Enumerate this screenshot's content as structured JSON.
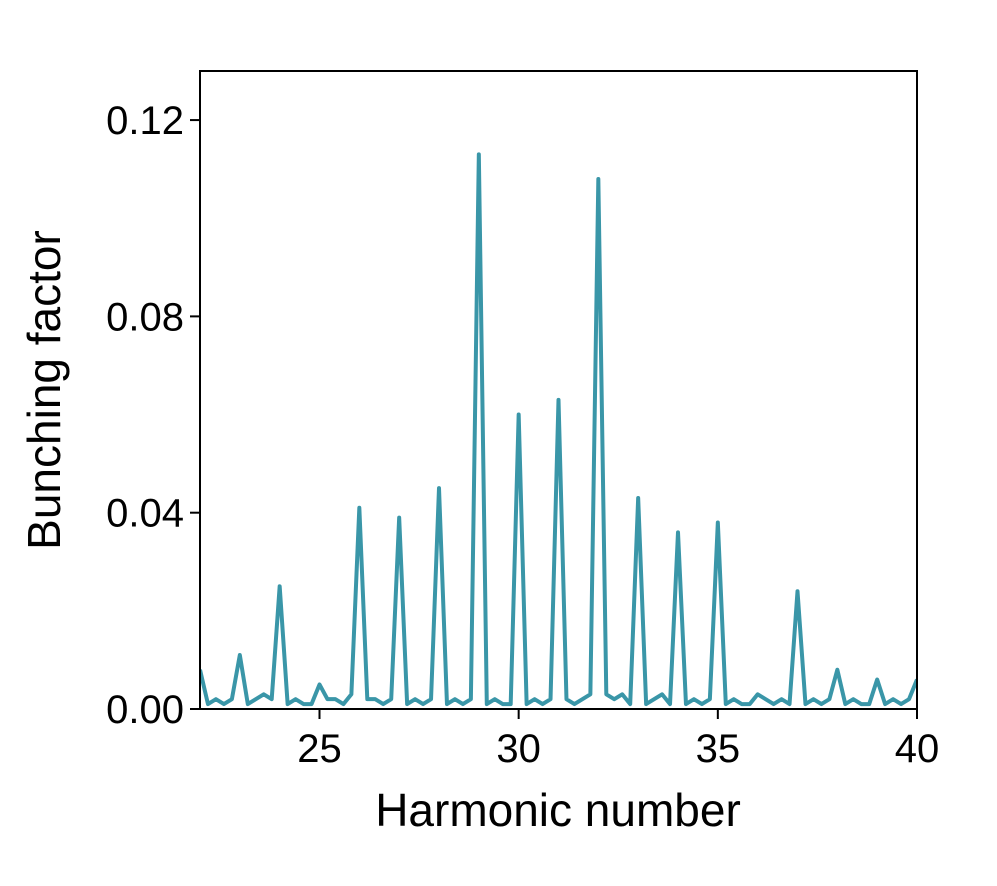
{
  "chart_data": {
    "type": "line",
    "title": "",
    "xlabel": "Harmonic number",
    "ylabel": "Bunching factor",
    "xlim": [
      22,
      40
    ],
    "ylim": [
      0,
      0.13
    ],
    "xticks": [
      25,
      30,
      35,
      40
    ],
    "yticks": [
      0.0,
      0.04,
      0.08,
      0.12
    ],
    "xtick_labels": [
      "25",
      "30",
      "35",
      "40"
    ],
    "ytick_labels": [
      "0.00",
      "0.04",
      "0.08",
      "0.12"
    ],
    "grid": false,
    "legend": "none",
    "series": [
      {
        "color": "#3a96a8",
        "x": [
          22.0,
          22.2,
          22.4,
          22.6,
          22.8,
          23.0,
          23.2,
          23.4,
          23.6,
          23.8,
          24.0,
          24.2,
          24.4,
          24.6,
          24.8,
          25.0,
          25.2,
          25.4,
          25.6,
          25.8,
          26.0,
          26.2,
          26.4,
          26.6,
          26.8,
          27.0,
          27.2,
          27.4,
          27.6,
          27.8,
          28.0,
          28.2,
          28.4,
          28.6,
          28.8,
          29.0,
          29.2,
          29.4,
          29.6,
          29.8,
          30.0,
          30.2,
          30.4,
          30.6,
          30.8,
          31.0,
          31.2,
          31.4,
          31.6,
          31.8,
          32.0,
          32.2,
          32.4,
          32.6,
          32.8,
          33.0,
          33.2,
          33.4,
          33.6,
          33.8,
          34.0,
          34.2,
          34.4,
          34.6,
          34.8,
          35.0,
          35.2,
          35.4,
          35.6,
          35.8,
          36.0,
          36.2,
          36.4,
          36.6,
          36.8,
          37.0,
          37.2,
          37.4,
          37.6,
          37.8,
          38.0,
          38.2,
          38.4,
          38.6,
          38.8,
          39.0,
          39.2,
          39.4,
          39.6,
          39.8,
          40.0
        ],
        "y": [
          0.008,
          0.001,
          0.002,
          0.001,
          0.002,
          0.011,
          0.001,
          0.002,
          0.003,
          0.002,
          0.025,
          0.001,
          0.002,
          0.001,
          0.001,
          0.005,
          0.002,
          0.002,
          0.001,
          0.003,
          0.041,
          0.002,
          0.002,
          0.001,
          0.002,
          0.039,
          0.001,
          0.002,
          0.001,
          0.002,
          0.045,
          0.001,
          0.002,
          0.001,
          0.002,
          0.113,
          0.001,
          0.002,
          0.001,
          0.001,
          0.06,
          0.001,
          0.002,
          0.001,
          0.002,
          0.063,
          0.002,
          0.001,
          0.002,
          0.003,
          0.108,
          0.003,
          0.002,
          0.003,
          0.001,
          0.043,
          0.001,
          0.002,
          0.003,
          0.001,
          0.036,
          0.001,
          0.002,
          0.001,
          0.002,
          0.038,
          0.001,
          0.002,
          0.001,
          0.001,
          0.003,
          0.002,
          0.001,
          0.002,
          0.001,
          0.024,
          0.001,
          0.002,
          0.001,
          0.002,
          0.008,
          0.001,
          0.002,
          0.001,
          0.001,
          0.006,
          0.001,
          0.002,
          0.001,
          0.002,
          0.006
        ]
      }
    ]
  }
}
